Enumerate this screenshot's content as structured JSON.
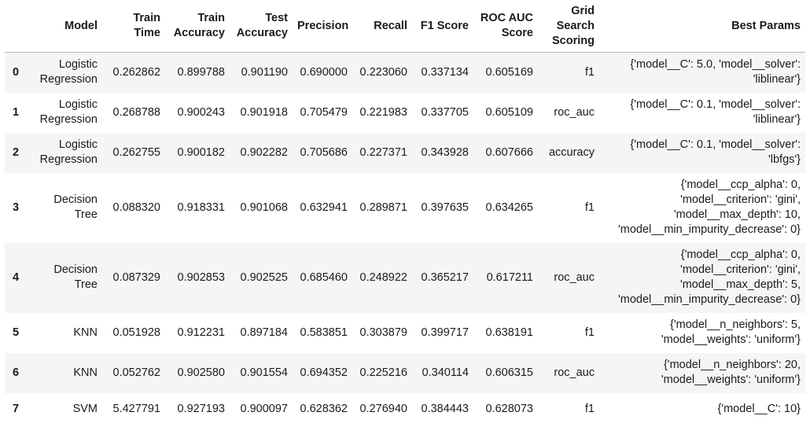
{
  "columns": {
    "index": "",
    "model": "Model",
    "train_time": [
      "Train",
      "Time"
    ],
    "train_accuracy": [
      "Train",
      "Accuracy"
    ],
    "test_accuracy": [
      "Test",
      "Accuracy"
    ],
    "precision": "Precision",
    "recall": "Recall",
    "f1": "F1 Score",
    "roc_auc": [
      "ROC AUC",
      "Score"
    ],
    "scoring": [
      "Grid",
      "Search",
      "Scoring"
    ],
    "best_params": "Best Params"
  },
  "rows": [
    {
      "index": "0",
      "model": [
        "Logistic",
        "Regression"
      ],
      "train_time": "0.262862",
      "train_accuracy": "0.899788",
      "test_accuracy": "0.901190",
      "precision": "0.690000",
      "recall": "0.223060",
      "f1": "0.337134",
      "roc_auc": "0.605169",
      "scoring": "f1",
      "best_params": [
        "{'model__C': 5.0, 'model__solver':",
        "'liblinear'}"
      ]
    },
    {
      "index": "1",
      "model": [
        "Logistic",
        "Regression"
      ],
      "train_time": "0.268788",
      "train_accuracy": "0.900243",
      "test_accuracy": "0.901918",
      "precision": "0.705479",
      "recall": "0.221983",
      "f1": "0.337705",
      "roc_auc": "0.605109",
      "scoring": "roc_auc",
      "best_params": [
        "{'model__C': 0.1, 'model__solver':",
        "'liblinear'}"
      ]
    },
    {
      "index": "2",
      "model": [
        "Logistic",
        "Regression"
      ],
      "train_time": "0.262755",
      "train_accuracy": "0.900182",
      "test_accuracy": "0.902282",
      "precision": "0.705686",
      "recall": "0.227371",
      "f1": "0.343928",
      "roc_auc": "0.607666",
      "scoring": "accuracy",
      "best_params": [
        "{'model__C': 0.1, 'model__solver':",
        "'lbfgs'}"
      ]
    },
    {
      "index": "3",
      "model": [
        "Decision",
        "Tree"
      ],
      "train_time": "0.088320",
      "train_accuracy": "0.918331",
      "test_accuracy": "0.901068",
      "precision": "0.632941",
      "recall": "0.289871",
      "f1": "0.397635",
      "roc_auc": "0.634265",
      "scoring": "f1",
      "best_params": [
        "{'model__ccp_alpha': 0,",
        "'model__criterion': 'gini',",
        "'model__max_depth': 10,",
        "'model__min_impurity_decrease': 0}"
      ]
    },
    {
      "index": "4",
      "model": [
        "Decision",
        "Tree"
      ],
      "train_time": "0.087329",
      "train_accuracy": "0.902853",
      "test_accuracy": "0.902525",
      "precision": "0.685460",
      "recall": "0.248922",
      "f1": "0.365217",
      "roc_auc": "0.617211",
      "scoring": "roc_auc",
      "best_params": [
        "{'model__ccp_alpha': 0,",
        "'model__criterion': 'gini',",
        "'model__max_depth': 5,",
        "'model__min_impurity_decrease': 0}"
      ]
    },
    {
      "index": "5",
      "model": [
        "KNN"
      ],
      "train_time": "0.051928",
      "train_accuracy": "0.912231",
      "test_accuracy": "0.897184",
      "precision": "0.583851",
      "recall": "0.303879",
      "f1": "0.399717",
      "roc_auc": "0.638191",
      "scoring": "f1",
      "best_params": [
        "{'model__n_neighbors': 5,",
        "'model__weights': 'uniform'}"
      ]
    },
    {
      "index": "6",
      "model": [
        "KNN"
      ],
      "train_time": "0.052762",
      "train_accuracy": "0.902580",
      "test_accuracy": "0.901554",
      "precision": "0.694352",
      "recall": "0.225216",
      "f1": "0.340114",
      "roc_auc": "0.606315",
      "scoring": "roc_auc",
      "best_params": [
        "{'model__n_neighbors': 20,",
        "'model__weights': 'uniform'}"
      ]
    },
    {
      "index": "7",
      "model": [
        "SVM"
      ],
      "train_time": "5.427791",
      "train_accuracy": "0.927193",
      "test_accuracy": "0.900097",
      "precision": "0.628362",
      "recall": "0.276940",
      "f1": "0.384443",
      "roc_auc": "0.628073",
      "scoring": "f1",
      "best_params": [
        "{'model__C': 10}"
      ]
    }
  ]
}
